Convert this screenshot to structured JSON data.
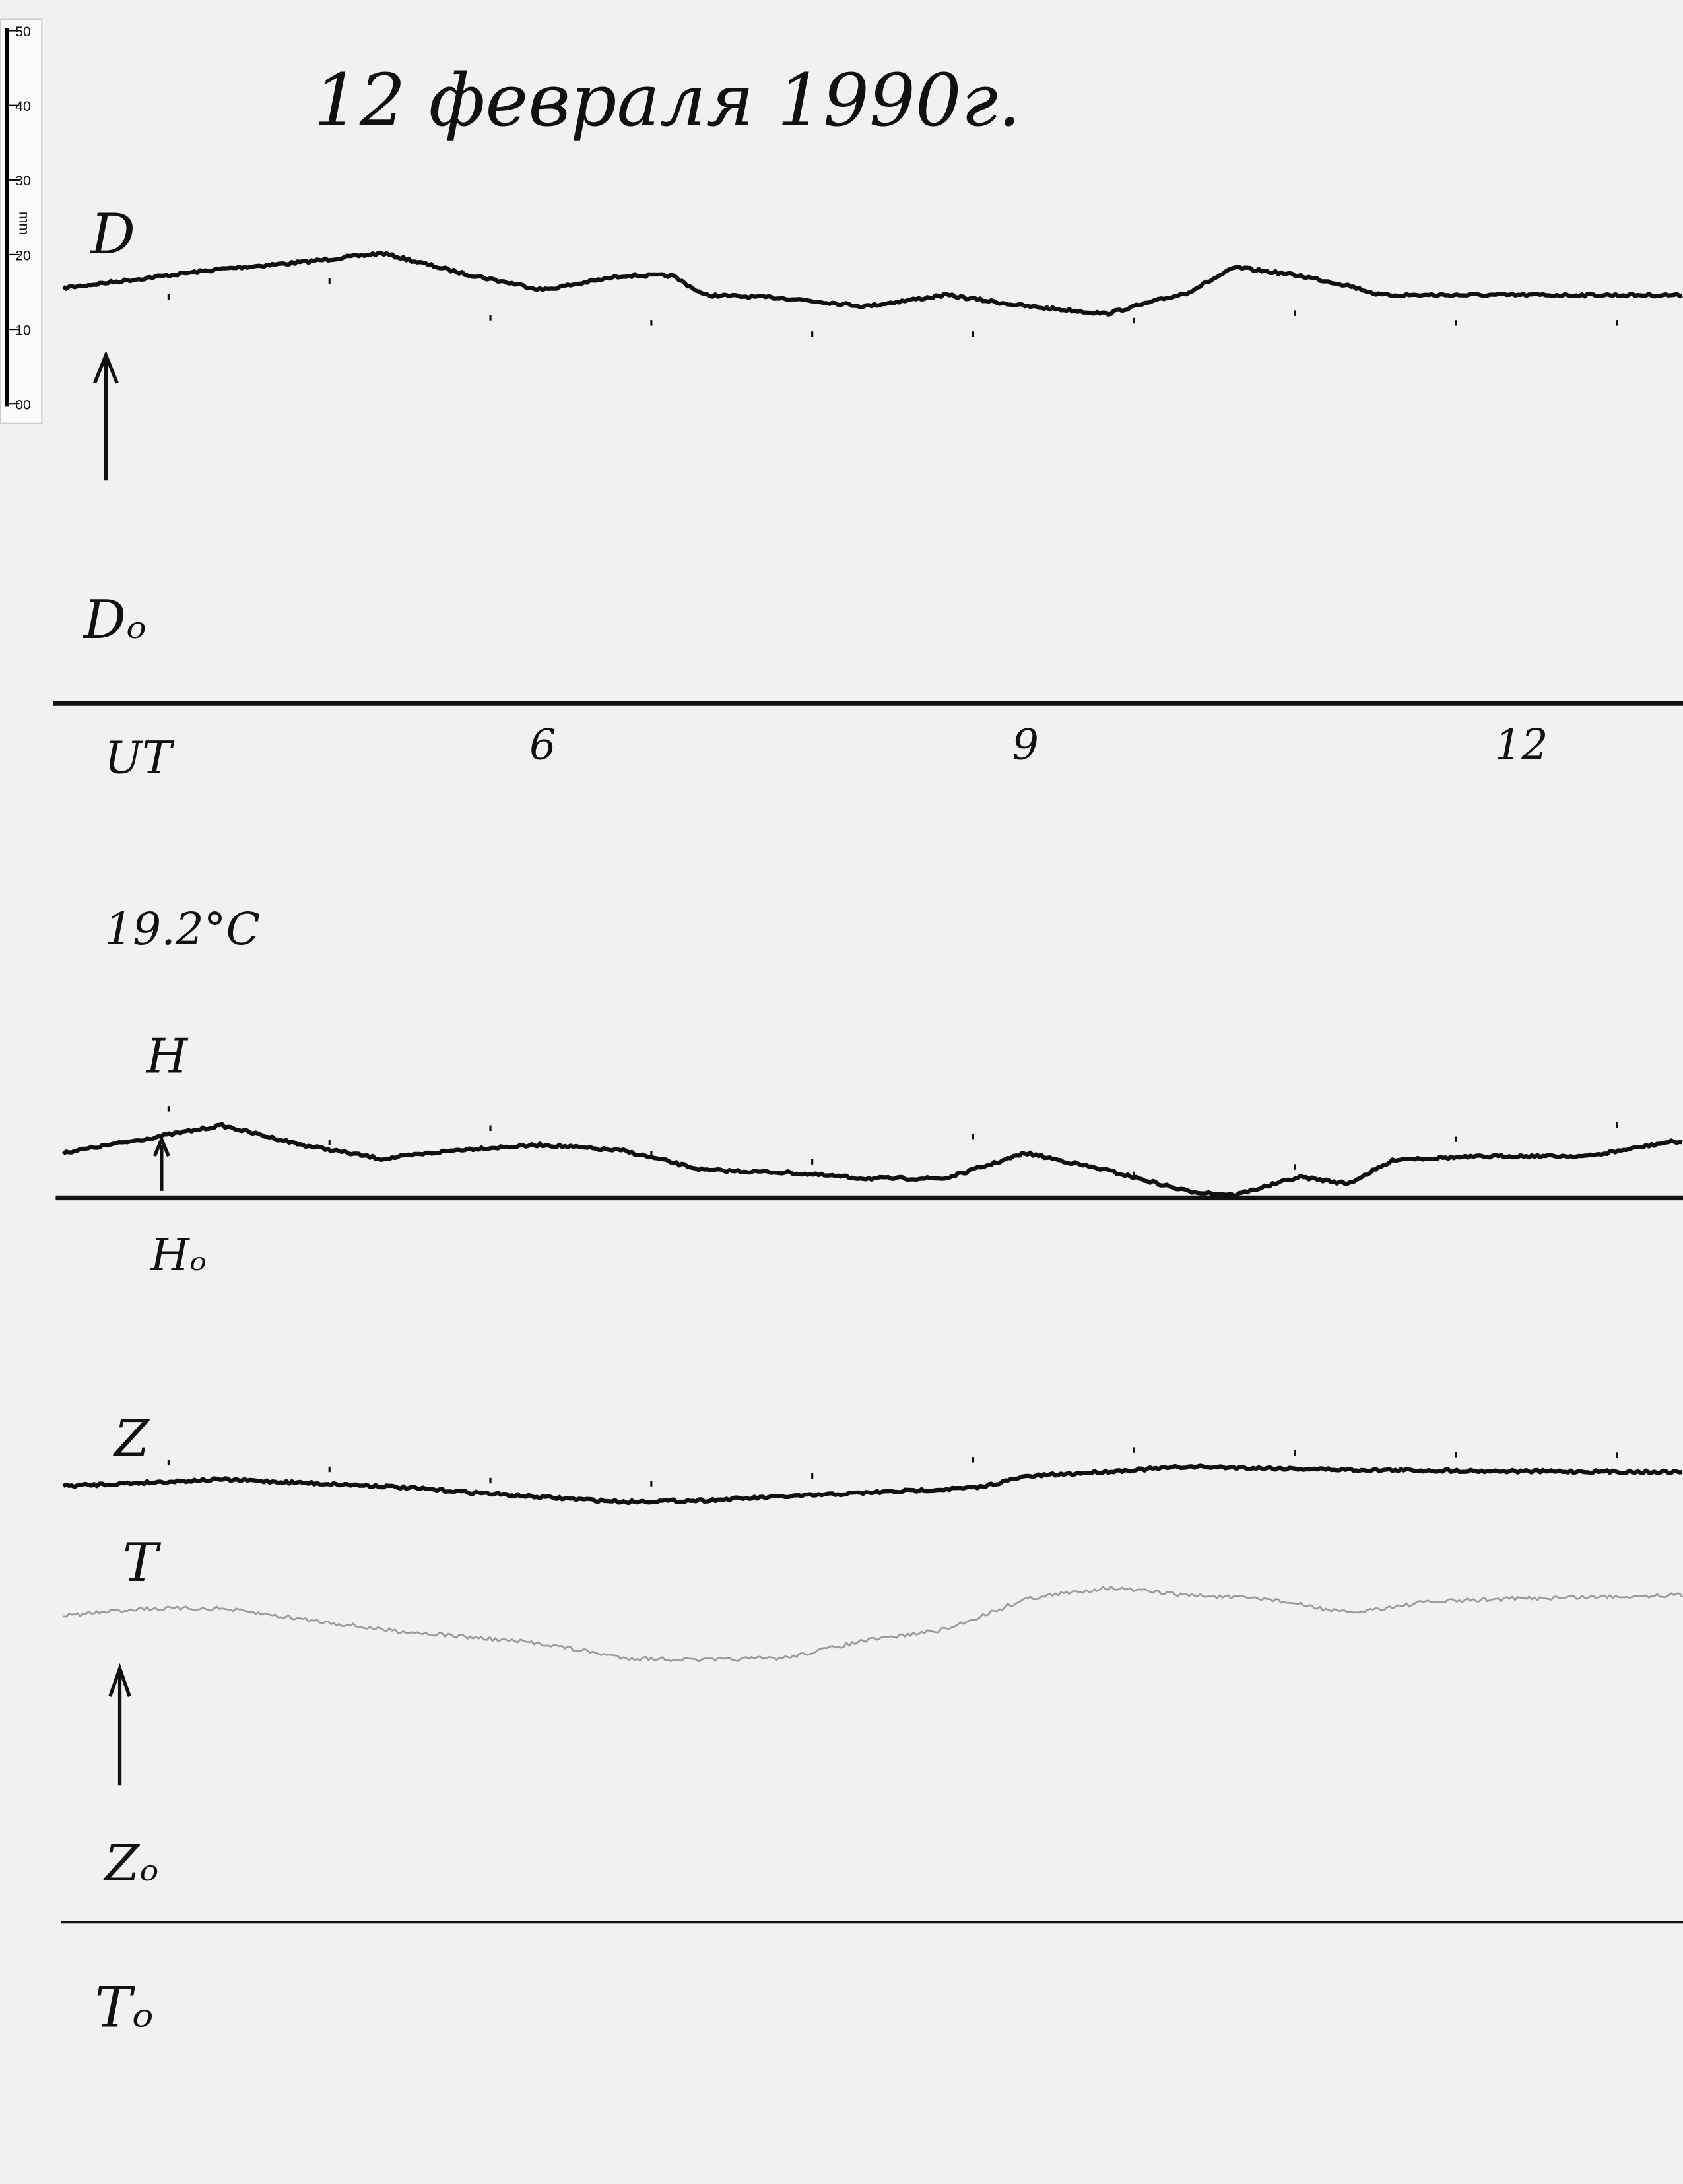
{
  "title": "12 февраля 1990г.",
  "ruler": {
    "ticks": [
      "50",
      "40",
      "30",
      "20",
      "10",
      "00"
    ],
    "unit": "mm"
  },
  "labels": {
    "d": "D",
    "d0": "Dₒ",
    "ut": "UT",
    "temp": "19.2°C",
    "h": "H",
    "h0": "Hₒ",
    "z": "Z",
    "t": "T",
    "z0": "Zₒ",
    "t0": "Tₒ"
  },
  "colors": {
    "paper": "#f1f1f1",
    "trace": "#111111",
    "t_trace": "#9a9a9a",
    "baseline": "#111111"
  },
  "chart_data": {
    "type": "line",
    "title": "12 февраля 1990г.",
    "xlabel": "UT",
    "x_ticks": [
      6,
      9,
      12
    ],
    "xlim": [
      3,
      13
    ],
    "ylabel": "",
    "grid": false,
    "series": [
      {
        "name": "D",
        "baseline": "Dₒ",
        "x": [
          3,
          3.5,
          4,
          4.5,
          5,
          5.5,
          6,
          6.5,
          6.8,
          7,
          7.5,
          8,
          8.5,
          9,
          9.5,
          10,
          10.3,
          10.7,
          11,
          11.2,
          12,
          13
        ],
        "y_mm": [
          55.6,
          56.9,
          58.2,
          59.1,
          60.3,
          57.6,
          55.4,
          57.3,
          57.3,
          54.7,
          54.3,
          53.2,
          54.7,
          53.2,
          52.2,
          55.0,
          58.4,
          57.3,
          56.0,
          54.7,
          54.7,
          54.7
        ]
      },
      {
        "name": "H",
        "baseline": "Hₒ",
        "x": [
          3,
          3.5,
          4,
          4.5,
          5,
          5.3,
          5.5,
          6,
          6.5,
          7,
          7.5,
          8,
          8.5,
          9,
          9.5,
          10,
          10.3,
          10.7,
          11,
          11.3,
          12,
          12.5,
          13
        ],
        "y_mm": [
          6.0,
          7.8,
          9.7,
          7.1,
          5.2,
          6.0,
          6.5,
          7.1,
          6.3,
          3.7,
          3.4,
          2.6,
          2.6,
          6.0,
          3.7,
          0.9,
          0.4,
          2.8,
          1.9,
          5.2,
          5.6,
          5.6,
          7.5
        ]
      },
      {
        "name": "Z",
        "baseline": "Zₒ",
        "x": [
          3,
          4,
          5,
          6,
          6.5,
          7,
          8,
          8.7,
          9,
          10,
          11,
          12,
          13
        ],
        "y_mm": [
          58.4,
          59.3,
          58.4,
          56.9,
          56.3,
          56.5,
          57.5,
          58.2,
          59.7,
          61.0,
          60.6,
          60.4,
          60.3
        ]
      },
      {
        "name": "T",
        "baseline": "Tₒ",
        "x": [
          3,
          3.5,
          4,
          5,
          6,
          6.5,
          7,
          7.5,
          8,
          8.5,
          9,
          9.5,
          10,
          10.5,
          11,
          11.5,
          12,
          13
        ],
        "y_mm": [
          41.0,
          42.0,
          42.0,
          39.2,
          37.3,
          35.4,
          35.1,
          35.4,
          37.7,
          39.2,
          43.3,
          44.8,
          43.8,
          43.3,
          41.4,
          42.9,
          43.3,
          43.8
        ]
      }
    ]
  }
}
